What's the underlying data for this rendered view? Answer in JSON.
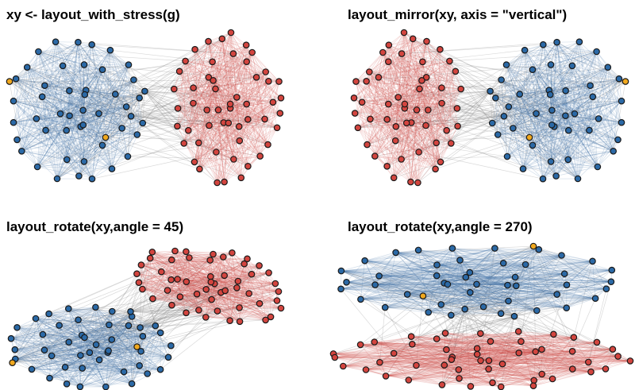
{
  "figure_background": "#ffffff",
  "chart_data": {
    "type": "network",
    "description": "Four panels showing the same two-cluster network drawn with a stress layout and three manipulations of that layout: vertical mirror, 45-degree rotation, 270-degree rotation. Blue and red clusters are densely connected internally (blue/red edges), linked by sparse gray between-cluster edges through two blue broker nodes; two amber-highlighted nodes are marked.",
    "legend": "none",
    "axes": "none",
    "panels": [
      {
        "title": "xy <- layout_with_stress(g)",
        "transform": {
          "kind": "identity",
          "angle_deg": 0
        }
      },
      {
        "title": "layout_mirror(xy, axis = \"vertical\")",
        "transform": {
          "kind": "mirror-vertical",
          "angle_deg": 0
        }
      },
      {
        "title": "layout_rotate(xy,angle = 45)",
        "transform": {
          "kind": "rotate",
          "angle_deg": 45
        }
      },
      {
        "title": "layout_rotate(xy,angle = 270)",
        "transform": {
          "kind": "rotate",
          "angle_deg": 270
        }
      }
    ],
    "graph": {
      "seed": 9,
      "clusters": [
        {
          "name": "blue",
          "center": [
            -0.8,
            0.0
          ],
          "rings": [
            {
              "n": 22,
              "rx": 0.68,
              "ry": 0.7,
              "phase": 0.14,
              "jitter": 0.09
            },
            {
              "n": 13,
              "rx": 0.44,
              "ry": 0.46,
              "phase": 0.45,
              "jitter": 0.18
            },
            {
              "n": 8,
              "rx": 0.22,
              "ry": 0.24,
              "phase": 0.8,
              "jitter": 0.2
            },
            {
              "n": 2,
              "rx": 0.07,
              "ry": 0.08,
              "phase": 0.3,
              "jitter": 0.1
            }
          ]
        },
        {
          "name": "red",
          "center": [
            0.7,
            0.03
          ],
          "rings": [
            {
              "n": 24,
              "rx": 0.48,
              "ry": 0.76,
              "phase": 0.05,
              "jitter": 0.09
            },
            {
              "n": 14,
              "rx": 0.31,
              "ry": 0.5,
              "phase": 0.5,
              "jitter": 0.18
            },
            {
              "n": 9,
              "rx": 0.16,
              "ry": 0.26,
              "phase": 0.9,
              "jitter": 0.2
            },
            {
              "n": 2,
              "rx": 0.06,
              "ry": 0.08,
              "phase": 0.2,
              "jitter": 0.1
            }
          ]
        }
      ],
      "extra_nodes": [
        {
          "x": 1.27,
          "y": 0.3,
          "group": "red",
          "role": "member"
        },
        {
          "x": 1.29,
          "y": 0.13,
          "group": "red",
          "role": "member"
        },
        {
          "x": 1.28,
          "y": -0.03,
          "group": "red",
          "role": "member"
        },
        {
          "x": 1.25,
          "y": -0.18,
          "group": "red",
          "role": "member"
        },
        {
          "x": -0.1,
          "y": 0.2,
          "group": "blue",
          "role": "broker"
        },
        {
          "x": -0.24,
          "y": -0.06,
          "group": "blue",
          "role": "broker"
        },
        {
          "x": -1.48,
          "y": 0.3,
          "group": "orange",
          "role": "marked"
        },
        {
          "x": -0.5,
          "y": -0.28,
          "group": "orange",
          "role": "marked"
        }
      ],
      "edge_rules": {
        "intra_blue_p": 0.5,
        "intra_red_p": 0.42,
        "broker_to_blue_p": [
          0.6,
          0.5
        ],
        "broker_to_red_p": [
          0.5,
          0.4
        ],
        "orange_to_blue_p": [
          0.28,
          0.25
        ],
        "orange_to_red_p": [
          0.08,
          0.1
        ],
        "cross_gray_edges": 40
      }
    },
    "style": {
      "node_radius": 3.7,
      "node_stroke": "#1a1a1a",
      "node_stroke_width": 1.2,
      "node_fill": {
        "blue": "#2b69a6",
        "red": "#d3453f",
        "orange": "#f0a81e"
      },
      "edge_color": {
        "blue": "#3a6ea5",
        "red": "#cc4543",
        "gray": "#8c8c8c"
      },
      "edge_opacity": {
        "blue": 0.22,
        "red": 0.2,
        "gray": 0.32
      },
      "edge_width": 0.7
    }
  }
}
